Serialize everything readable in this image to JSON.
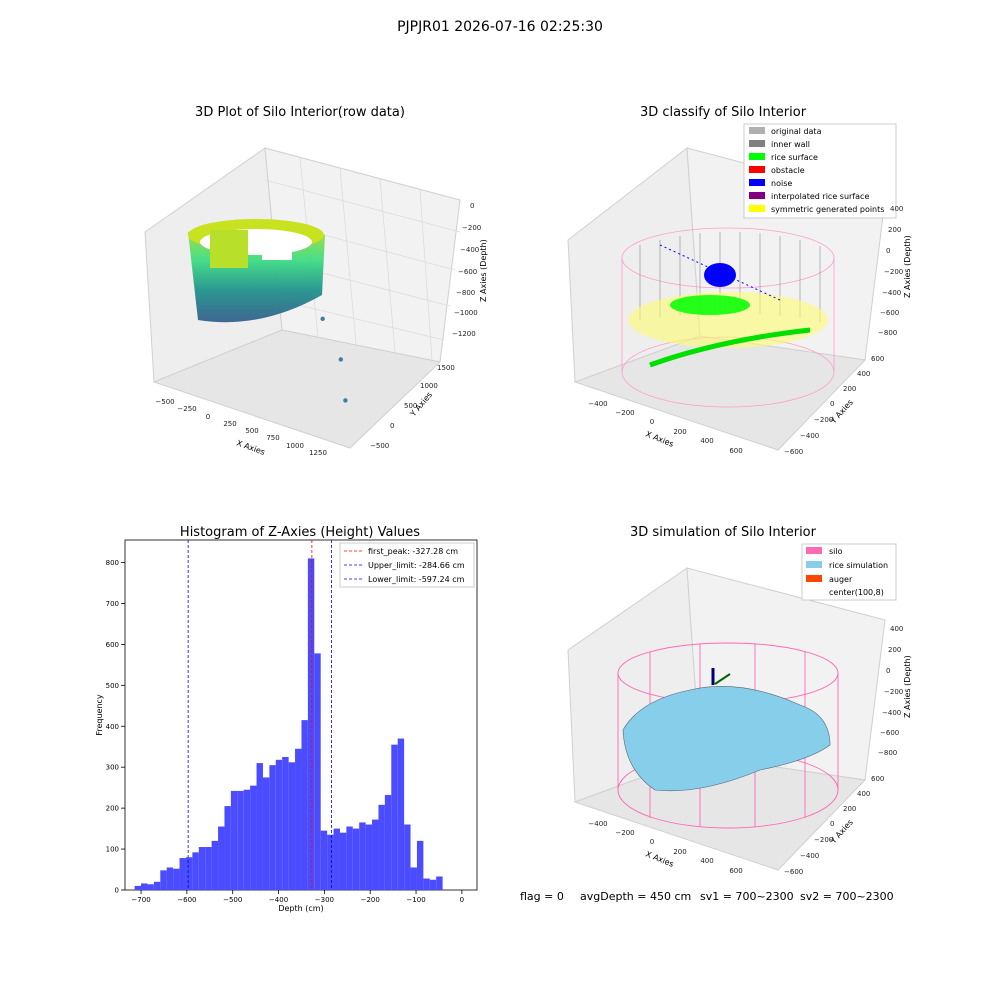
{
  "figure": {
    "suptitle": "PJPJR01 2026-07-16 02:25:30",
    "status": {
      "flag": "flag = 0",
      "avg_depth": "avgDepth = 450 cm",
      "sv1": "sv1 = 700~2300",
      "sv2": "sv2 = 700~2300"
    }
  },
  "chart_data": [
    {
      "type": "scatter",
      "projection": "3d",
      "title": "3D Plot of Silo Interior(row data)",
      "xlabel": "X Axies",
      "ylabel": "Y Axies",
      "zlabel": "Z Axies (Depth)",
      "xticks": [
        "−500",
        "−250",
        "0",
        "250",
        "500",
        "750",
        "1000",
        "1250"
      ],
      "yticks": [
        "−500",
        "0",
        "500",
        "1000",
        "1500"
      ],
      "zticks": [
        "0",
        "−200",
        "−400",
        "−600",
        "−800",
        "−1000",
        "−1200"
      ],
      "xlim": [
        -600,
        1400
      ],
      "ylim": [
        -700,
        1700
      ],
      "zlim": [
        -1300,
        50
      ],
      "colormap": "viridis",
      "outlier_points": [
        {
          "x": 1200,
          "y": -300,
          "z": -1100
        },
        {
          "x": 1000,
          "y": 100,
          "z": -950
        },
        {
          "x": 700,
          "y": 400,
          "z": -800
        }
      ]
    },
    {
      "type": "scatter",
      "projection": "3d",
      "title": "3D classify of Silo Interior",
      "xlabel": "X Axies",
      "ylabel": "Y Axies",
      "zlabel": "Z Axies (Depth)",
      "xticks": [
        "−400",
        "−200",
        "0",
        "200",
        "400",
        "600"
      ],
      "yticks": [
        "−600",
        "−400",
        "−200",
        "0",
        "200",
        "400",
        "600"
      ],
      "zticks": [
        "400",
        "200",
        "0",
        "−200",
        "−400",
        "−600",
        "−800"
      ],
      "legend_position": "top-right",
      "legend": [
        {
          "label": "original data",
          "color": "#b0b0b0"
        },
        {
          "label": "inner wall",
          "color": "#808080"
        },
        {
          "label": "rice surface",
          "color": "#00ff00"
        },
        {
          "label": "obstacle",
          "color": "#ff0000"
        },
        {
          "label": "noise",
          "color": "#0000ff"
        },
        {
          "label": "interpolated rice surface",
          "color": "#800080"
        },
        {
          "label": "symmetric generated points",
          "color": "#ffff00"
        }
      ]
    },
    {
      "type": "bar",
      "title": "Histogram of Z-Axies (Height) Values",
      "xlabel": "Depth (cm)",
      "ylabel": "Frequency",
      "xlim": [
        -735,
        33
      ],
      "ylim": [
        0,
        855
      ],
      "xticks": [
        -700,
        -600,
        -500,
        -400,
        -300,
        -200,
        -100,
        0
      ],
      "yticks": [
        0,
        100,
        200,
        300,
        400,
        500,
        600,
        700,
        800
      ],
      "bar_color": "#4b4bff",
      "bin_width": 14,
      "bin_start": -714,
      "values": [
        10,
        16,
        14,
        20,
        48,
        55,
        52,
        78,
        80,
        92,
        105,
        105,
        120,
        155,
        205,
        242,
        242,
        245,
        255,
        310,
        275,
        305,
        318,
        325,
        312,
        345,
        415,
        810,
        578,
        145,
        135,
        150,
        140,
        155,
        150,
        165,
        160,
        172,
        208,
        232,
        355,
        370,
        160,
        55,
        120,
        28,
        25,
        33
      ],
      "vlines": [
        {
          "label": "first_peak: -327.28 cm",
          "x": -327.28,
          "color": "#ff0000"
        },
        {
          "label": "Upper_limit: -284.66 cm",
          "x": -284.66,
          "color": "#0000ff"
        },
        {
          "label": "Lower_limit: -597.24 cm",
          "x": -597.24,
          "color": "#0000ff"
        }
      ],
      "legend_position": "top-right"
    },
    {
      "type": "surface",
      "projection": "3d",
      "title": "3D simulation of Silo Interior",
      "xlabel": "X Axies",
      "ylabel": "Y Axies",
      "zlabel": "Z Axies (Depth)",
      "xticks": [
        "−400",
        "−200",
        "0",
        "200",
        "400",
        "600"
      ],
      "yticks": [
        "−600",
        "−400",
        "−200",
        "0",
        "200",
        "400",
        "600"
      ],
      "zticks": [
        "400",
        "200",
        "0",
        "−200",
        "−400",
        "−600",
        "−800"
      ],
      "legend_position": "top-right",
      "legend": [
        {
          "label": "silo",
          "color": "#ff69b4"
        },
        {
          "label": "rice simulation",
          "color": "#87ceeb"
        },
        {
          "label": "auger",
          "color": "#ff4500"
        },
        {
          "label": "center(100,8)",
          "color": ""
        }
      ]
    }
  ]
}
